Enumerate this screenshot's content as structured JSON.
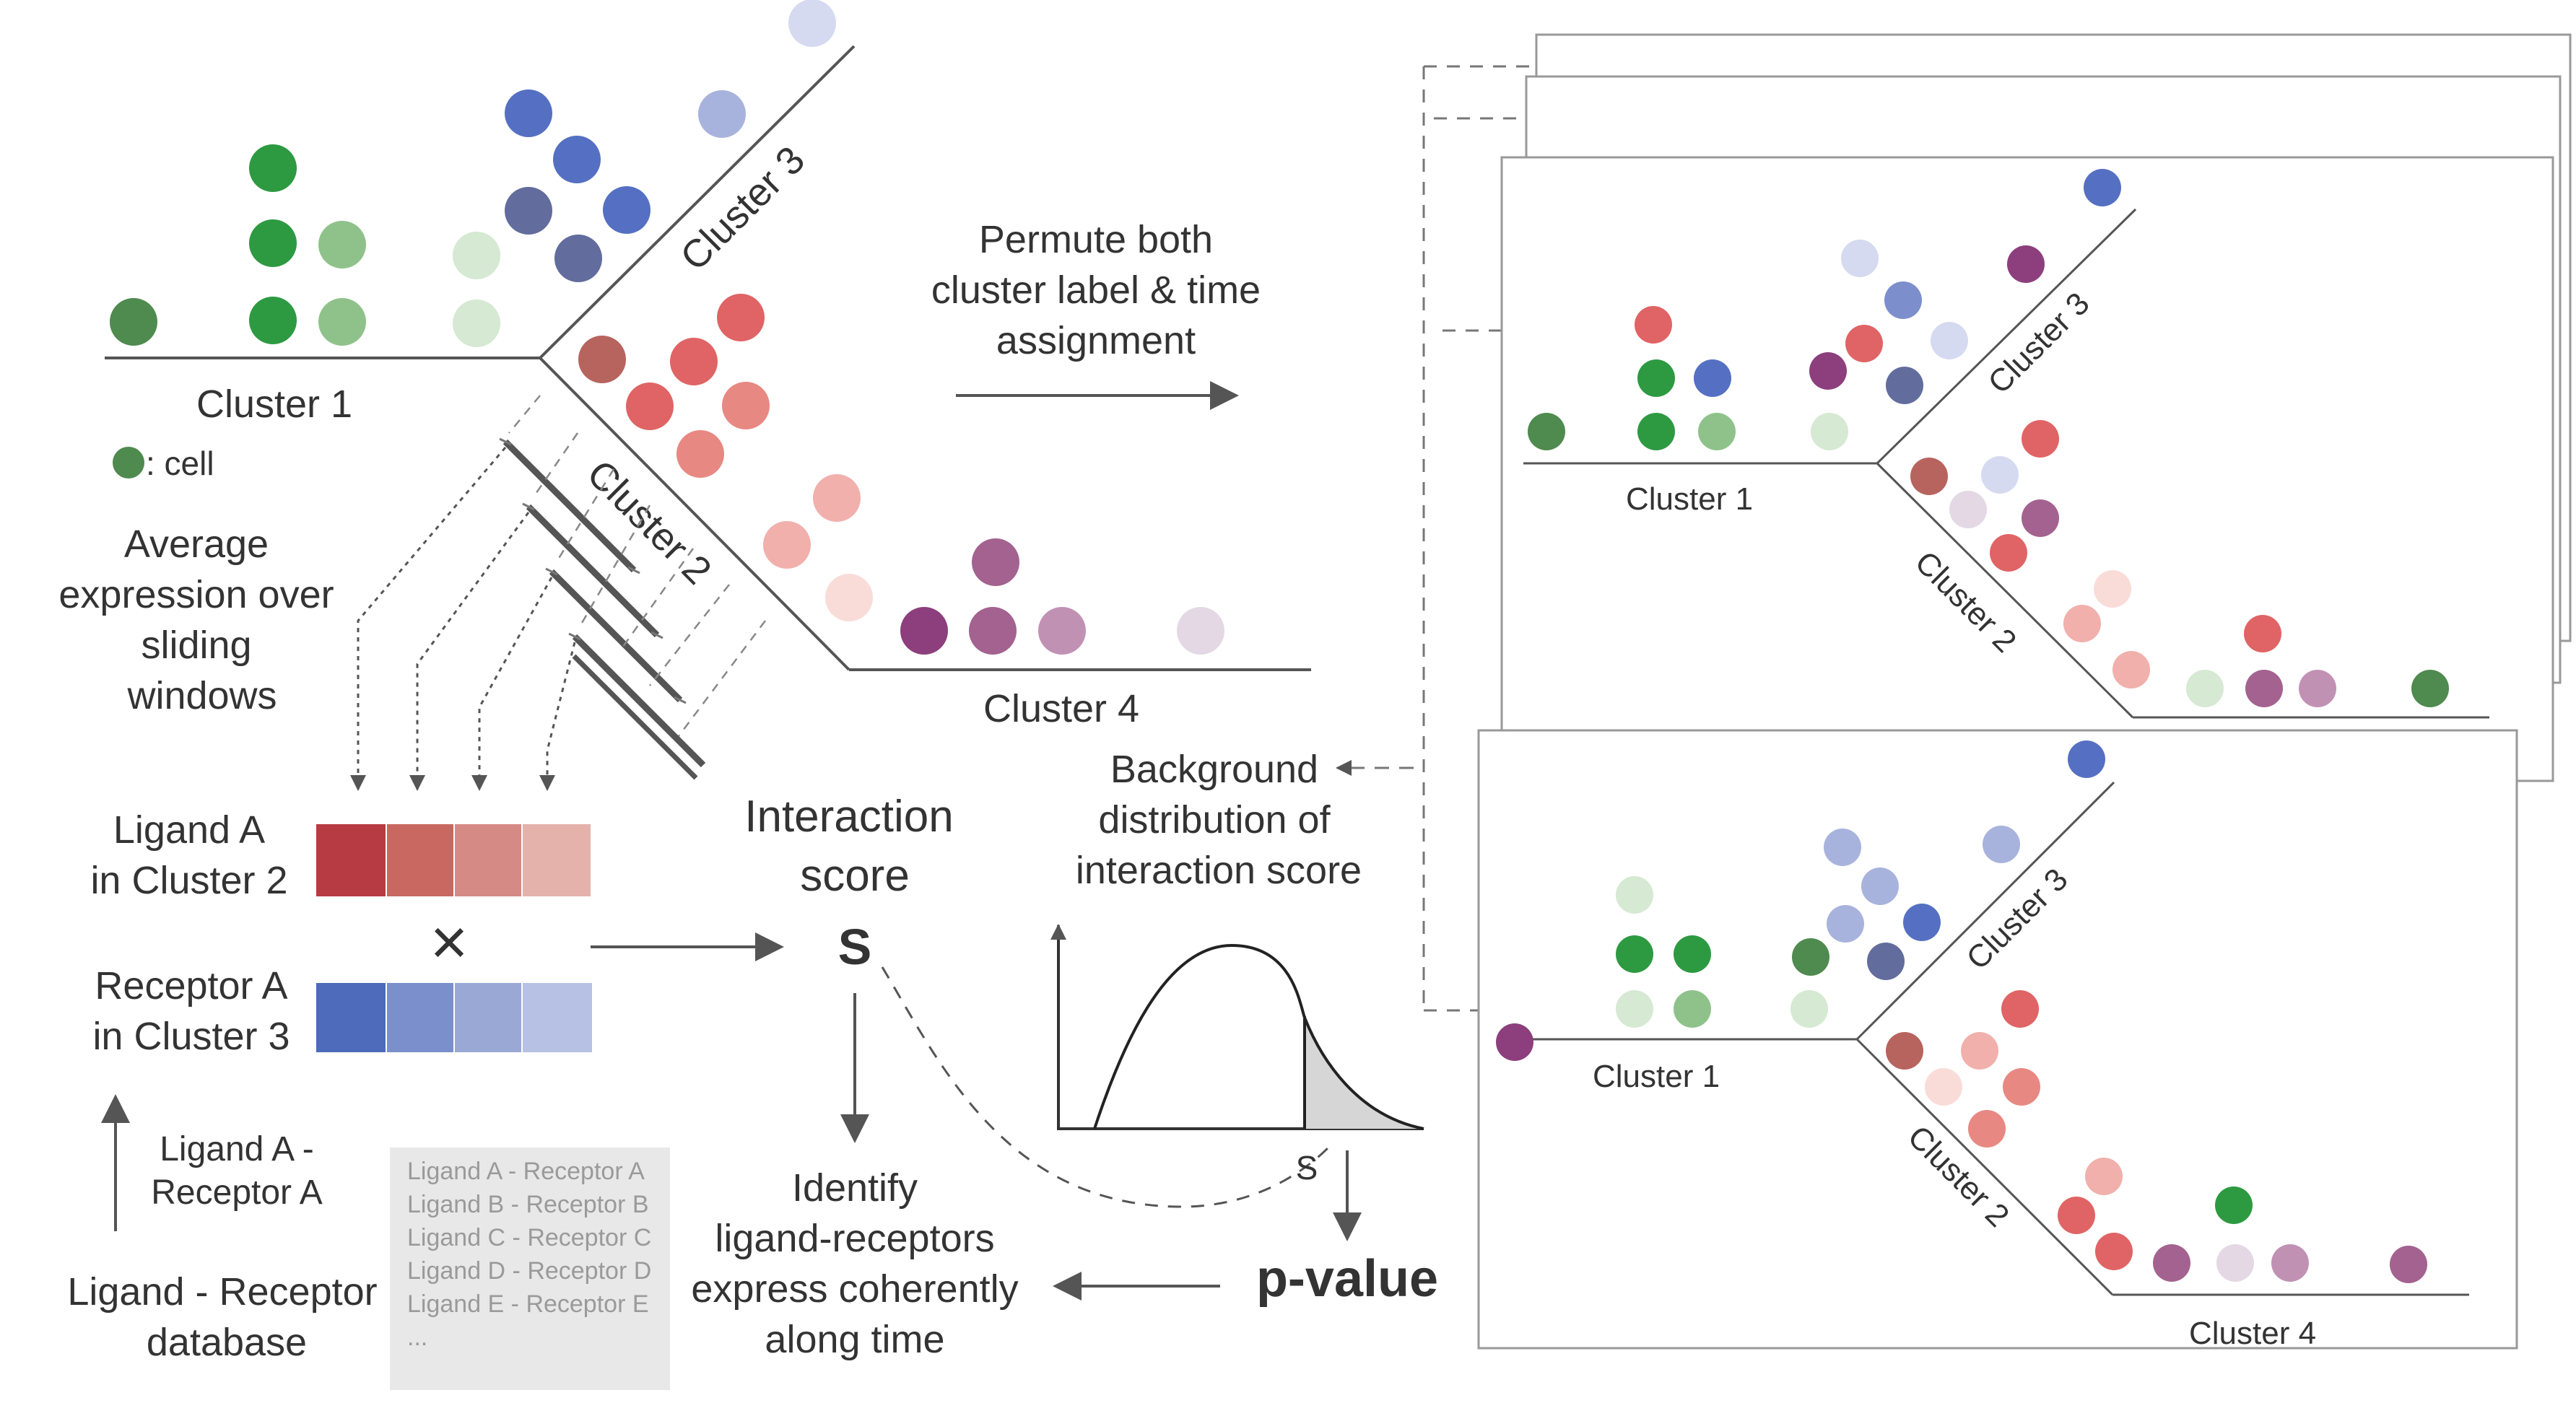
{
  "colors": {
    "green_dark": "#4f8a4f",
    "green": "#2d9a41",
    "green_light": "#8fc28a",
    "green_pale": "#d6e9d3",
    "blue": "#5570c2",
    "blue_mid": "#7c8fcc",
    "blue_light": "#a8b3dd",
    "blue_pale": "#d5daf1",
    "slate": "#626c9d",
    "red": "#e06465",
    "red_mid": "#e88882",
    "red_light": "#f1b0ac",
    "red_pale": "#f9dcd8",
    "brick": "#b7645f",
    "purple": "#8c3f7c",
    "purple_mid": "#a3628f",
    "purple_light": "#c191b4",
    "lilac": "#e3d8e4",
    "ligand_bar": [
      "#b73b42",
      "#c86860",
      "#d68a85",
      "#e4b2ab"
    ],
    "receptor_bar": [
      "#4d6bba",
      "#7a8fcb",
      "#9aa8d6",
      "#b7c1e4"
    ],
    "tail_fill": "#d6d6d6",
    "db_box": "#e8e8e8"
  },
  "trajectory": {
    "cluster1": "Cluster 1",
    "cluster2": "Cluster 2",
    "cluster3": "Cluster 3",
    "cluster4": "Cluster 4",
    "cell_legend": ": cell"
  },
  "sliding": [
    "Average",
    "expression over",
    "sliding",
    "windows"
  ],
  "ligand_label": [
    "Ligand A",
    "in Cluster 2"
  ],
  "receptor_label": [
    "Receptor A",
    "in Cluster 3"
  ],
  "times_symbol": "×",
  "interaction": [
    "Interaction",
    "score"
  ],
  "s_symbol": "S",
  "permute": [
    "Permute both",
    "cluster label & time",
    "assignment"
  ],
  "background": [
    "Background",
    "distribution of",
    "interaction score"
  ],
  "plot_s_label": "S",
  "pvalue": "p-value",
  "identify": [
    "Identify",
    "ligand-receptors",
    "express coherently",
    "along time"
  ],
  "pair": [
    "Ligand A -",
    "Receptor A"
  ],
  "database_label": [
    "Ligand - Receptor",
    "database"
  ],
  "database_items": [
    "Ligand A - Receptor A",
    "Ligand B - Receptor B",
    "Ligand C - Receptor C",
    "Ligand D - Receptor D",
    "Ligand E - Receptor E",
    "..."
  ],
  "panel_top": {
    "cluster1": "Cluster 1",
    "cluster2": "Cluster 2",
    "cluster3": "Cluster 3"
  },
  "panel_bottom": {
    "cluster1": "Cluster 1",
    "cluster2": "Cluster 2",
    "cluster3": "Cluster 3",
    "cluster4": "Cluster 4"
  }
}
